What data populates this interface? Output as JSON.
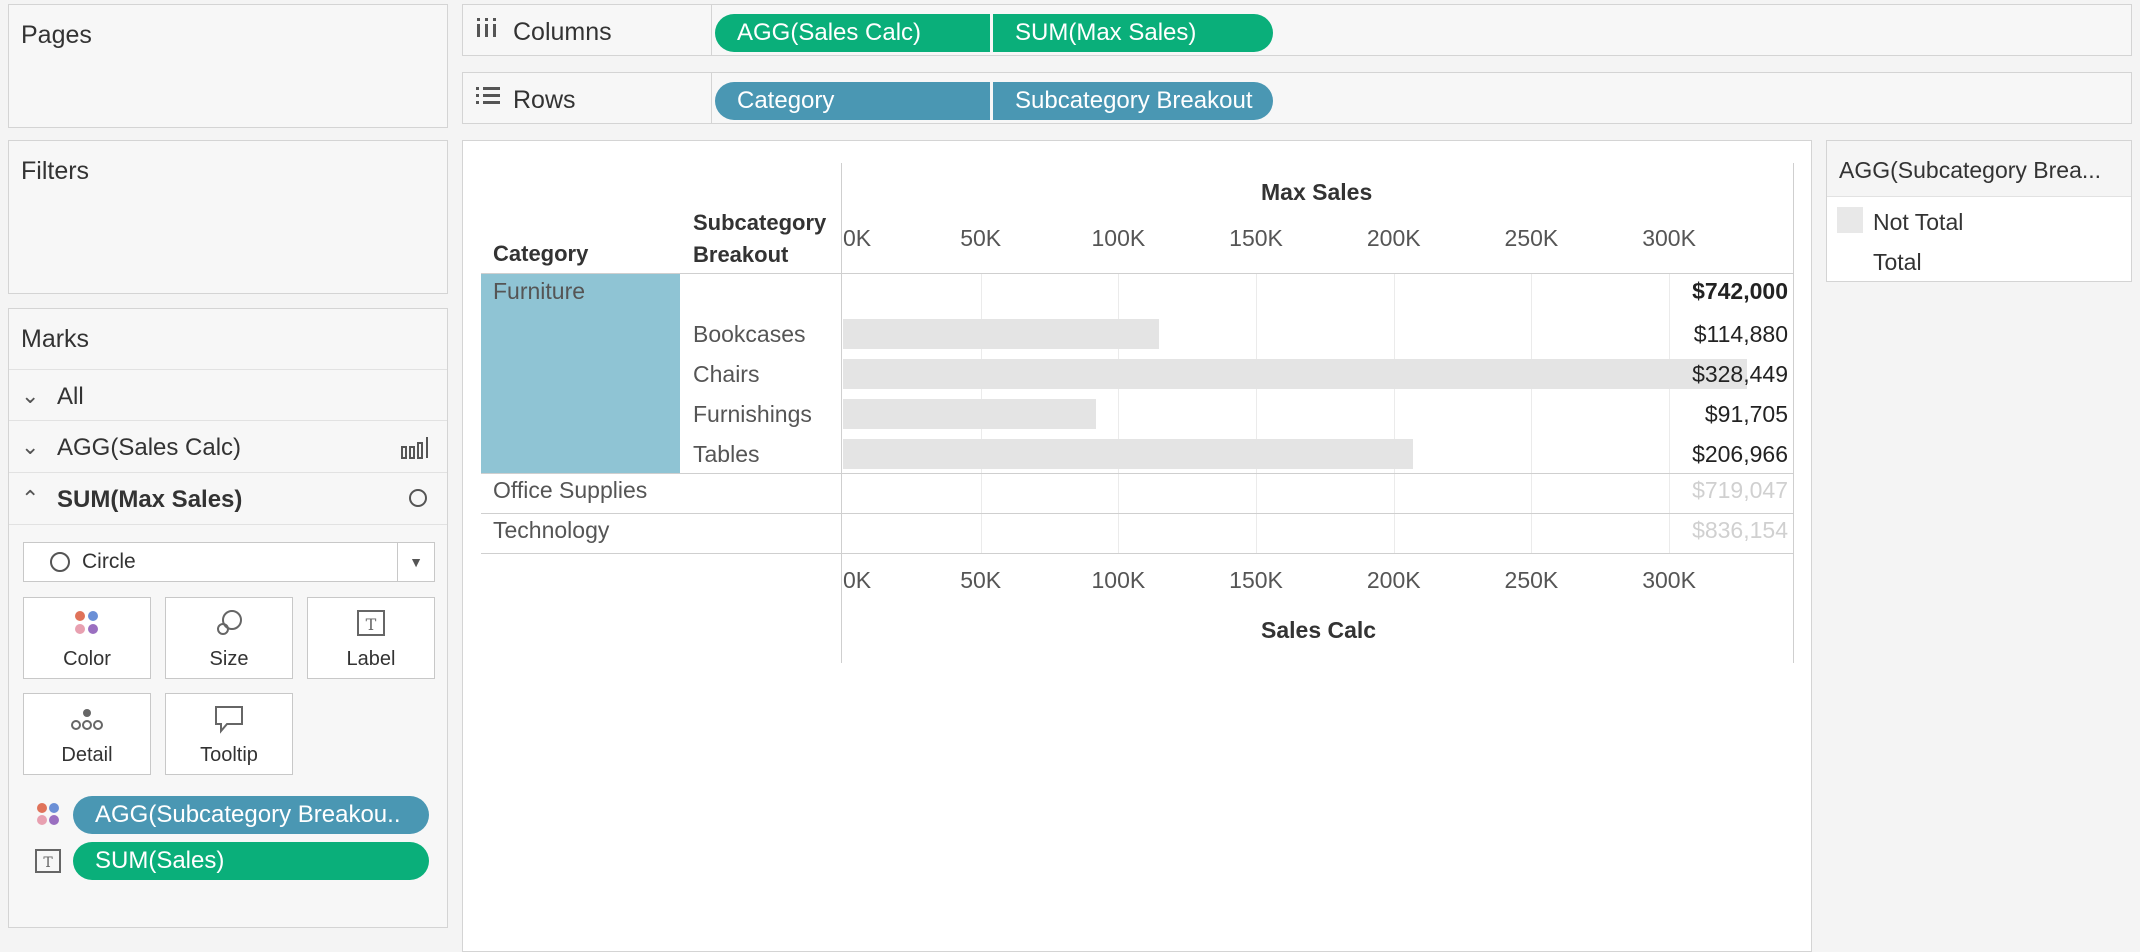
{
  "pages": {
    "title": "Pages"
  },
  "filters": {
    "title": "Filters"
  },
  "columns": {
    "label": "Columns",
    "icon": "columns-icon",
    "pills": [
      "AGG(Sales Calc)",
      "SUM(Max Sales)"
    ]
  },
  "rows": {
    "label": "Rows",
    "icon": "rows-icon",
    "pills": [
      "Category",
      "Subcategory Breakout"
    ]
  },
  "marks": {
    "title": "Marks",
    "cards": [
      {
        "label": "All",
        "expanded": false,
        "icon": ""
      },
      {
        "label": "AGG(Sales Calc)",
        "expanded": false,
        "icon": "bar-chart-icon"
      },
      {
        "label": "SUM(Max Sales)",
        "expanded": true,
        "icon": "circle-icon"
      }
    ],
    "mark_type": "Circle",
    "buttons": [
      {
        "label": "Color",
        "icon": "color-dots-icon"
      },
      {
        "label": "Size",
        "icon": "size-icon"
      },
      {
        "label": "Label",
        "icon": "label-T-icon"
      },
      {
        "label": "Detail",
        "icon": "detail-dots-icon"
      },
      {
        "label": "Tooltip",
        "icon": "tooltip-bubble-icon"
      }
    ],
    "fields": [
      {
        "label": "AGG(Subcategory Breakou..",
        "icon": "color-dots-icon",
        "color": "#4a97b3"
      },
      {
        "label": "SUM(Sales)",
        "icon": "label-T-icon",
        "color": "#0aaf7a"
      }
    ]
  },
  "view": {
    "headers": {
      "category": "Category",
      "subcategory": "Subcategory\nBreakout"
    },
    "top_axis_title": "Max Sales",
    "bottom_axis_title": "Sales Calc",
    "ticks": [
      "0K",
      "50K",
      "100K",
      "150K",
      "200K",
      "250K",
      "300K"
    ],
    "highlight_color": "#8fc4d4"
  },
  "legend": {
    "title": "AGG(Subcategory Brea...",
    "items": [
      {
        "label": "Not Total",
        "color": "#e8e8e8"
      },
      {
        "label": "Total",
        "color": "#ffffff"
      }
    ]
  },
  "chart_data": {
    "type": "bar",
    "xlabel": "Max Sales",
    "x2label": "Sales Calc",
    "xlim": [
      0,
      345000
    ],
    "tick_values": [
      0,
      50000,
      100000,
      150000,
      200000,
      250000,
      300000
    ],
    "rows": [
      {
        "category": "Furniture",
        "subcategory": "",
        "value": null,
        "label": "$742,000",
        "bold": true,
        "faded": false
      },
      {
        "category": "",
        "subcategory": "Bookcases",
        "value": 114880,
        "label": "$114,880",
        "bold": false,
        "faded": false
      },
      {
        "category": "",
        "subcategory": "Chairs",
        "value": 328449,
        "label": "$328,449",
        "bold": false,
        "faded": false
      },
      {
        "category": "",
        "subcategory": "Furnishings",
        "value": 91705,
        "label": "$91,705",
        "bold": false,
        "faded": false
      },
      {
        "category": "",
        "subcategory": "Tables",
        "value": 206966,
        "label": "$206,966",
        "bold": false,
        "faded": false
      },
      {
        "category": "Office Supplies",
        "subcategory": "",
        "value": null,
        "label": "$719,047",
        "bold": false,
        "faded": true
      },
      {
        "category": "Technology",
        "subcategory": "",
        "value": null,
        "label": "$836,154",
        "bold": false,
        "faded": true
      }
    ]
  }
}
